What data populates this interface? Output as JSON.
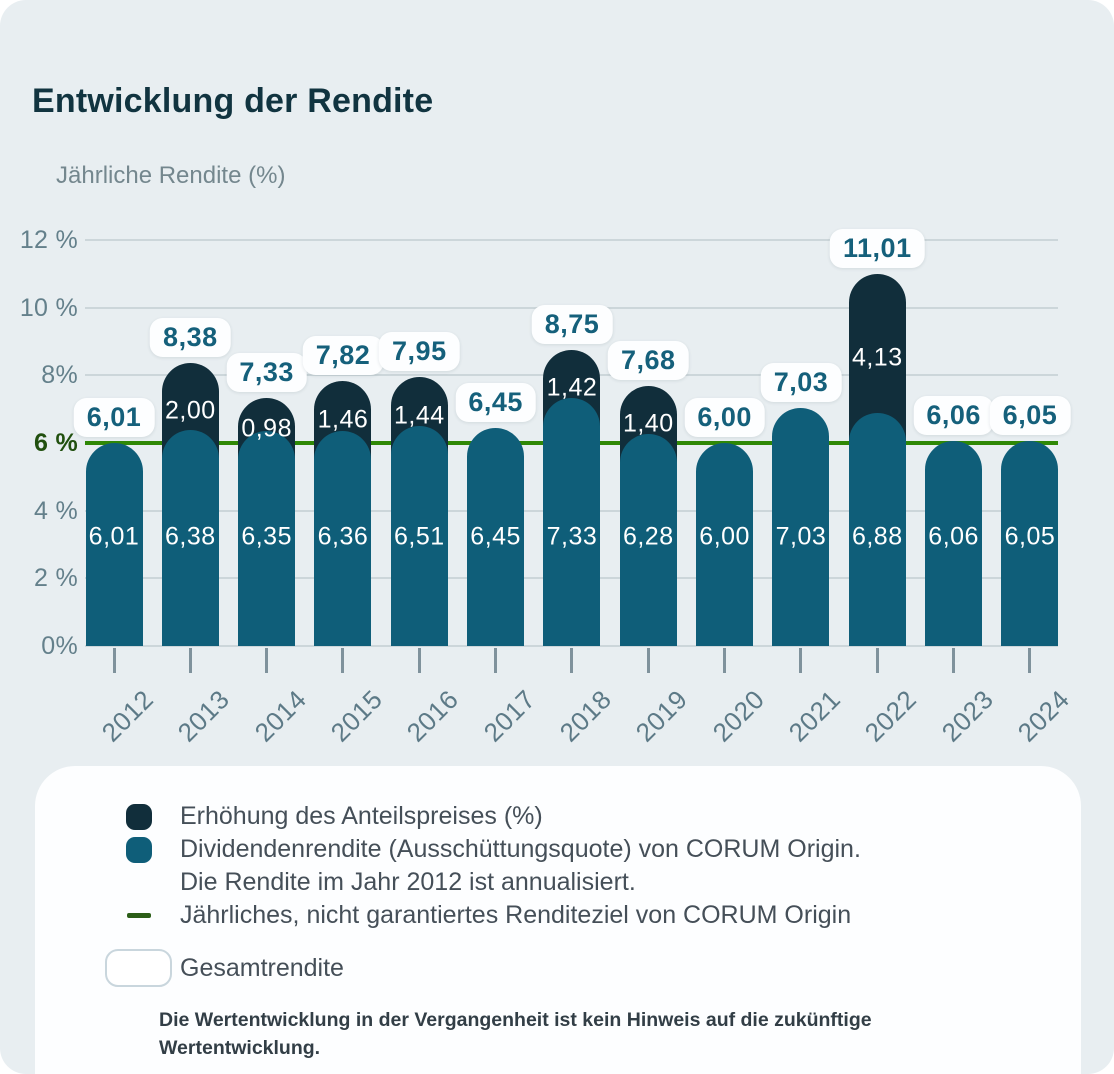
{
  "title": "Entwicklung der Rendite",
  "y_axis_title": "Jährliche Rendite (%)",
  "chart_data": {
    "type": "bar",
    "stacked": true,
    "categories": [
      "2012",
      "2013",
      "2014",
      "2015",
      "2016",
      "2017",
      "2018",
      "2019",
      "2020",
      "2021",
      "2022",
      "2023",
      "2024"
    ],
    "series": [
      {
        "name": "Erhöhung des Anteilspreises (%)",
        "color": "#112e3b",
        "values": [
          0,
          2.0,
          0.98,
          1.46,
          1.44,
          0,
          1.42,
          1.4,
          0,
          0,
          4.13,
          0,
          0
        ],
        "labels": [
          "",
          "2,00",
          "0,98",
          "1,46",
          "1,44",
          "",
          "1,42",
          "1,40",
          "",
          "",
          "4,13",
          "",
          ""
        ]
      },
      {
        "name": "Dividendenrendite (Ausschüttungsquote) von CORUM Origin",
        "color": "#0f5e79",
        "values": [
          6.01,
          6.38,
          6.35,
          6.36,
          6.51,
          6.45,
          7.33,
          6.28,
          6.0,
          7.03,
          6.88,
          6.06,
          6.05
        ],
        "labels": [
          "6,01",
          "6,38",
          "6,35",
          "6,36",
          "6,51",
          "6,45",
          "7,33",
          "6,28",
          "6,00",
          "7,03",
          "6,88",
          "6,06",
          "6,05"
        ]
      }
    ],
    "total_values": [
      6.01,
      8.38,
      7.33,
      7.82,
      7.95,
      6.45,
      8.75,
      7.68,
      6.0,
      7.03,
      11.01,
      6.06,
      6.05
    ],
    "total_labels": [
      "6,01",
      "8,38",
      "7,33",
      "7,82",
      "7,95",
      "6,45",
      "8,75",
      "7,68",
      "6,00",
      "7,03",
      "11,01",
      "6,06",
      "6,05"
    ],
    "target_line": {
      "value": 6,
      "color": "#2f8806"
    },
    "y_ticks": [
      {
        "label": "12 %",
        "value": 12
      },
      {
        "label": "10 %",
        "value": 10
      },
      {
        "label": "8%",
        "value": 8
      },
      {
        "label": "6 %",
        "value": 6,
        "highlight": true
      },
      {
        "label": "4 %",
        "value": 4
      },
      {
        "label": "2 %",
        "value": 2
      },
      {
        "label": "0%",
        "value": 0
      }
    ],
    "ylim": [
      0,
      12
    ],
    "grid": true,
    "legend_position": "bottom"
  },
  "legend": {
    "item_price_increase": {
      "label": "Erhöhung des Anteilspreises (%)",
      "color": "#112e3b"
    },
    "item_dividend": {
      "label": "Dividendenrendite (Ausschüttungsquote) von CORUM Origin.",
      "label_line2": "Die Rendite im Jahr 2012 ist annualisiert.",
      "color": "#0f5e79"
    },
    "item_target": {
      "label": "Jährliches, nicht garantiertes Renditeziel von CORUM Origin",
      "color": "#2c5e18"
    },
    "item_total": {
      "label": "Gesamtrendite"
    }
  },
  "disclaimer": "Die Wertentwicklung in der Vergangenheit ist kein Hinweis auf die zukünftige Wertentwicklung.",
  "colors": {
    "background": "#e8eef1",
    "panel": "#fdfeff",
    "navy": "#112e3b",
    "teal": "#0f5e79",
    "target_green": "#2f8806",
    "dark_green_text": "#21500f",
    "grid": "#ccd6da",
    "axis_text": "#64808b",
    "pill_text": "#15607b"
  }
}
